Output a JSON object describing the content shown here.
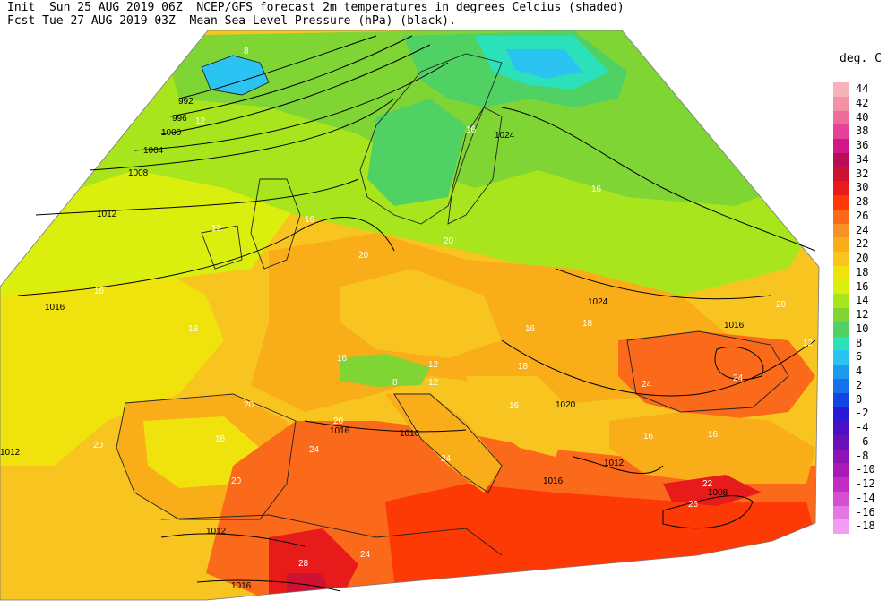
{
  "header": {
    "line1": "Init  Sun 25 AUG 2019 06Z  NCEP/GFS forecast 2m temperatures in degrees Celcius (shaded)",
    "line2": "Fcst Tue 27 AUG 2019 03Z  Mean Sea-Level Pressure (hPa) (black)."
  },
  "legend": {
    "title": "deg. C",
    "items": [
      {
        "label": "44",
        "color": "#f6b3b8"
      },
      {
        "label": "42",
        "color": "#f391a6"
      },
      {
        "label": "40",
        "color": "#ee6d98"
      },
      {
        "label": "38",
        "color": "#e6429a"
      },
      {
        "label": "36",
        "color": "#d3168a"
      },
      {
        "label": "34",
        "color": "#b70e57"
      },
      {
        "label": "32",
        "color": "#ce1232"
      },
      {
        "label": "30",
        "color": "#e81b1b"
      },
      {
        "label": "28",
        "color": "#fd3a06"
      },
      {
        "label": "26",
        "color": "#fa6a1a"
      },
      {
        "label": "24",
        "color": "#f99224"
      },
      {
        "label": "22",
        "color": "#f8ad19"
      },
      {
        "label": "20",
        "color": "#f8c520"
      },
      {
        "label": "18",
        "color": "#f0e20c"
      },
      {
        "label": "16",
        "color": "#dbef0f"
      },
      {
        "label": "14",
        "color": "#a9e51c"
      },
      {
        "label": "12",
        "color": "#7ed534"
      },
      {
        "label": "10",
        "color": "#4fd164"
      },
      {
        "label": "8",
        "color": "#2be1b9"
      },
      {
        "label": "6",
        "color": "#2ac3f2"
      },
      {
        "label": "4",
        "color": "#1b9bef"
      },
      {
        "label": "2",
        "color": "#1672ec"
      },
      {
        "label": "0",
        "color": "#1444e3"
      },
      {
        "label": "-2",
        "color": "#2b19d8"
      },
      {
        "label": "-4",
        "color": "#4a10c4"
      },
      {
        "label": "-6",
        "color": "#6b0fb8"
      },
      {
        "label": "-8",
        "color": "#8d14b4"
      },
      {
        "label": "-10",
        "color": "#a81ab8"
      },
      {
        "label": "-12",
        "color": "#c12dc4"
      },
      {
        "label": "-14",
        "color": "#d64fd3"
      },
      {
        "label": "-16",
        "color": "#e775e2"
      },
      {
        "label": "-18",
        "color": "#f29df0"
      }
    ]
  },
  "map": {
    "isobar_labels": [
      "992",
      "996",
      "1000",
      "1004",
      "1008",
      "1012",
      "1016",
      "1016",
      "1016",
      "1016",
      "1012",
      "1012",
      "1016",
      "1016",
      "1020",
      "1024",
      "1024",
      "1008",
      "1012"
    ],
    "temp_labels": [
      "8",
      "12",
      "16",
      "16",
      "18",
      "20",
      "20",
      "16",
      "16",
      "18",
      "16",
      "20",
      "20",
      "16",
      "16",
      "16",
      "12",
      "18",
      "16",
      "20",
      "24",
      "24",
      "24",
      "24",
      "22",
      "26",
      "28",
      "16",
      "20",
      "20",
      "24",
      "12",
      "12",
      "8",
      "12"
    ]
  }
}
